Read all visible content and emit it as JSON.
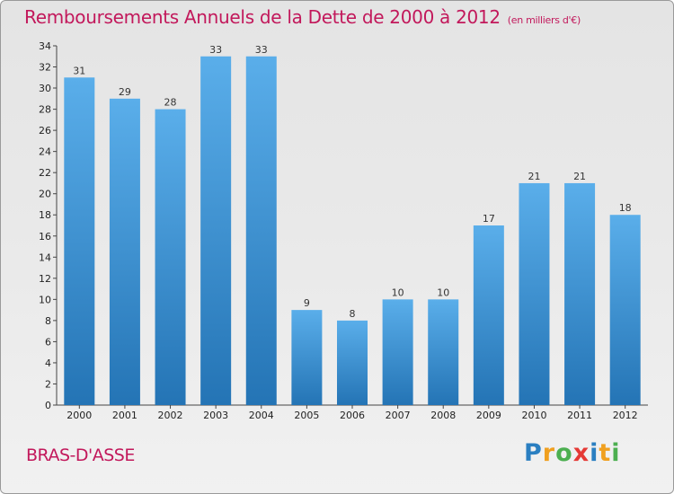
{
  "chart_data": {
    "type": "bar",
    "title": "Remboursements Annuels de la Dette de 2000 à 2012",
    "subtitle": "(en milliers d'€)",
    "xlabel": "",
    "ylabel": "",
    "categories": [
      "2000",
      "2001",
      "2002",
      "2003",
      "2004",
      "2005",
      "2006",
      "2007",
      "2008",
      "2009",
      "2010",
      "2011",
      "2012"
    ],
    "values": [
      31,
      29,
      28,
      33,
      33,
      9,
      8,
      10,
      10,
      17,
      21,
      21,
      18
    ],
    "ylim": [
      0,
      34
    ],
    "yticks": [
      0,
      2,
      4,
      6,
      8,
      10,
      12,
      14,
      16,
      18,
      20,
      22,
      24,
      26,
      28,
      30,
      32,
      34
    ],
    "grid": false,
    "bar_color": "#3d8fd6"
  },
  "footer": {
    "city": "BRAS-D'ASSE",
    "logo_letters": [
      "P",
      "r",
      "o",
      "x",
      "i",
      "t",
      "i"
    ],
    "logo_colors": [
      "#2a7fc1",
      "#f0a020",
      "#4caf50",
      "#e53935",
      "#2a7fc1",
      "#f0a020",
      "#4caf50"
    ]
  }
}
